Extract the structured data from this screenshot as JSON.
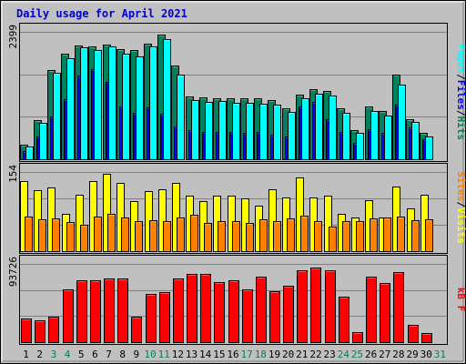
{
  "chart_data": {
    "title": "Daily usage for April 2021",
    "days": [
      "1",
      "2",
      "3",
      "4",
      "5",
      "6",
      "7",
      "8",
      "9",
      "10",
      "11",
      "12",
      "13",
      "14",
      "15",
      "16",
      "17",
      "18",
      "19",
      "20",
      "21",
      "22",
      "23",
      "24",
      "25",
      "26",
      "27",
      "28",
      "29",
      "30",
      "31"
    ],
    "weekend_days": [
      "3",
      "4",
      "10",
      "11",
      "17",
      "18",
      "24",
      "25",
      "31"
    ],
    "colors": {
      "background": "#c0c0c0",
      "plot_background": "#c0c0c0",
      "title": "#0000cc",
      "gridline": "#808080",
      "hits": "#00805c",
      "files": "#0000ff",
      "pages": "#00ffff",
      "visits": "#ffff00",
      "sites": "#ff8000",
      "kbytes": "#ff0000",
      "weekend_label": "#00805c",
      "weekday_label": "#000000"
    },
    "panels": [
      {
        "id": "hits_files_pages",
        "type": "bar",
        "ymax_label": "2399",
        "ymax": 2399,
        "legend": [
          {
            "name": "Pages",
            "color_key": "pages"
          },
          {
            "name": "/",
            "color_key": "separator"
          },
          {
            "name": "Files",
            "color_key": "files"
          },
          {
            "name": "/",
            "color_key": "separator"
          },
          {
            "name": "Hits",
            "color_key": "hits"
          }
        ],
        "series": [
          {
            "key": "hits",
            "values": [
              280,
              730,
              1680,
              1980,
              2140,
              2120,
              2160,
              2080,
              2060,
              2180,
              2350,
              1760,
              1190,
              1160,
              1150,
              1140,
              1140,
              1140,
              1120,
              960,
              1210,
              1320,
              1280,
              960,
              550,
              1000,
              900,
              1590,
              760,
              490,
              0
            ]
          },
          {
            "key": "files",
            "values": [
              160,
              420,
              800,
              1130,
              1580,
              1700,
              1450,
              1000,
              870,
              980,
              860,
              620,
              550,
              510,
              510,
              520,
              500,
              520,
              470,
              420,
              1000,
              1080,
              760,
              520,
              300,
              570,
              500,
              1030,
              600,
              380,
              0
            ]
          },
          {
            "key": "pages",
            "values": [
              240,
              680,
              1620,
              1900,
              2110,
              2060,
              2120,
              1990,
              1930,
              2130,
              2260,
              1600,
              1110,
              1080,
              1090,
              1060,
              1060,
              1050,
              1030,
              890,
              1140,
              1240,
              1200,
              880,
              490,
              910,
              820,
              1410,
              700,
              430,
              0
            ]
          }
        ]
      },
      {
        "id": "visits_sites",
        "type": "bar",
        "ymax_label": "154",
        "ymax": 154,
        "legend": [
          {
            "name": "Sites",
            "color_key": "sites"
          },
          {
            "name": "/",
            "color_key": "separator"
          },
          {
            "name": "Visits",
            "color_key": "visits"
          }
        ],
        "series": [
          {
            "key": "visits",
            "values": [
              137,
              118,
              124,
              72,
              110,
              137,
              150,
              132,
              97,
              116,
              120,
              132,
              108,
              98,
              108,
              108,
              102,
              88,
              121,
              104,
              143,
              104,
              108,
              72,
              66,
              99,
              66,
              125,
              83,
              110,
              0
            ]
          },
          {
            "key": "sites",
            "values": [
              67,
              62,
              64,
              56,
              52,
              67,
              72,
              65,
              58,
              60,
              58,
              66,
              70,
              55,
              59,
              58,
              54,
              62,
              58,
              63,
              69,
              58,
              48,
              58,
              59,
              63,
              66,
              67,
              61,
              62,
              0
            ]
          }
        ]
      },
      {
        "id": "kbytes",
        "type": "bar",
        "ymax_label": "93726",
        "ymax": 93726,
        "legend": [
          {
            "name": "kB F",
            "color_key": "kbytes"
          }
        ],
        "series": [
          {
            "key": "kbytes",
            "values": [
              28000,
              26000,
              31000,
              63000,
              74000,
              74000,
              76000,
              76000,
              30000,
              58000,
              60000,
              76000,
              82000,
              82000,
              72000,
              74000,
              63000,
              78000,
              61000,
              68000,
              86000,
              89000,
              86000,
              54000,
              12000,
              78000,
              71000,
              84000,
              21000,
              11000,
              0
            ]
          }
        ]
      }
    ]
  }
}
